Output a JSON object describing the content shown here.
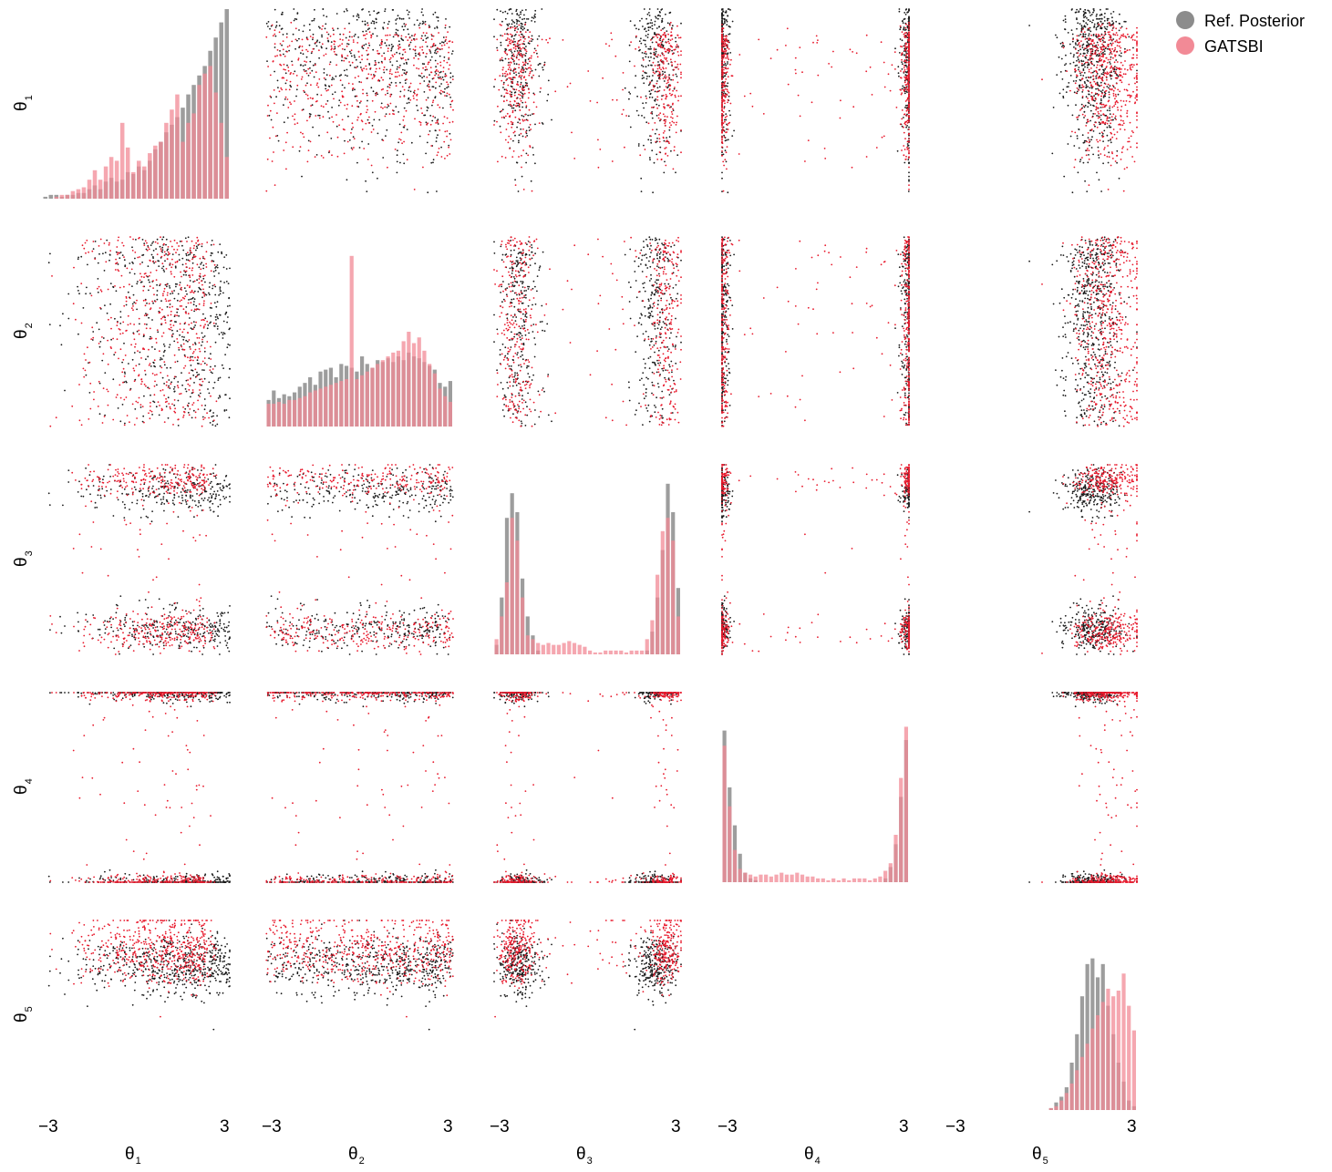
{
  "chart_data": {
    "type": "scatter",
    "subtype": "pairplot-corner",
    "params": [
      "θ1",
      "θ2",
      "θ3",
      "θ4",
      "θ5"
    ],
    "axis_symbol": "θ",
    "axis_subscripts": [
      "1",
      "2",
      "3",
      "4",
      "5"
    ],
    "range": [
      -3,
      3
    ],
    "tick_labels": [
      "−3",
      "3"
    ],
    "grid": false,
    "legend": {
      "placement": "top-right",
      "entries": [
        {
          "name": "Ref. Posterior",
          "color": "#8c8c8c"
        },
        {
          "name": "GATSBI",
          "color": "#f28a96"
        }
      ]
    },
    "colors": {
      "ref_hist": "#8c8c8c",
      "gatsbi_hist": "#f28a96",
      "ref_points": "#1a1a1a",
      "gatsbi_points": "#e8192c"
    },
    "diagonal_histograms": [
      {
        "param": "θ1",
        "bins": 34,
        "ref": [
          0.01,
          0.02,
          0.02,
          0.01,
          0.02,
          0.02,
          0.03,
          0.03,
          0.05,
          0.07,
          0.05,
          0.09,
          0.11,
          0.09,
          0.1,
          0.14,
          0.13,
          0.17,
          0.15,
          0.2,
          0.26,
          0.3,
          0.35,
          0.39,
          0.43,
          0.48,
          0.55,
          0.6,
          0.65,
          0.7,
          0.78,
          0.85,
          0.93,
          1.0
        ],
        "gatsbi": [
          0.0,
          0.0,
          0.01,
          0.02,
          0.02,
          0.04,
          0.05,
          0.06,
          0.1,
          0.15,
          0.1,
          0.17,
          0.22,
          0.2,
          0.4,
          0.27,
          0.14,
          0.2,
          0.17,
          0.24,
          0.28,
          0.3,
          0.4,
          0.47,
          0.55,
          0.3,
          0.4,
          0.45,
          0.6,
          0.66,
          0.7,
          0.56,
          0.4,
          0.22
        ]
      },
      {
        "param": "θ2",
        "bins": 36,
        "ref": [
          0.14,
          0.19,
          0.15,
          0.17,
          0.16,
          0.18,
          0.21,
          0.23,
          0.26,
          0.22,
          0.29,
          0.3,
          0.31,
          0.26,
          0.33,
          0.32,
          0.31,
          0.29,
          0.37,
          0.33,
          0.31,
          0.35,
          0.34,
          0.36,
          0.34,
          0.37,
          0.35,
          0.39,
          0.37,
          0.36,
          0.34,
          0.32,
          0.3,
          0.23,
          0.21,
          0.24
        ],
        "gatsbi": [
          0.12,
          0.12,
          0.13,
          0.12,
          0.14,
          0.14,
          0.15,
          0.16,
          0.18,
          0.19,
          0.2,
          0.21,
          0.22,
          0.23,
          0.24,
          0.25,
          0.9,
          0.25,
          0.27,
          0.29,
          0.31,
          0.33,
          0.35,
          0.37,
          0.39,
          0.4,
          0.45,
          0.5,
          0.44,
          0.47,
          0.4,
          0.33,
          0.28,
          0.2,
          0.16,
          0.13
        ]
      },
      {
        "param": "θ3",
        "bins": 36,
        "ref": [
          0.05,
          0.3,
          0.72,
          0.85,
          0.75,
          0.4,
          0.2,
          0.1,
          0.02,
          0.0,
          0.0,
          0.0,
          0.0,
          0.0,
          0.0,
          0.0,
          0.0,
          0.0,
          0.0,
          0.0,
          0.0,
          0.0,
          0.0,
          0.0,
          0.0,
          0.0,
          0.0,
          0.0,
          0.0,
          0.02,
          0.12,
          0.3,
          0.55,
          0.9,
          0.75,
          0.35
        ],
        "gatsbi": [
          0.08,
          0.2,
          0.38,
          0.72,
          0.6,
          0.3,
          0.1,
          0.08,
          0.06,
          0.05,
          0.06,
          0.05,
          0.05,
          0.06,
          0.07,
          0.06,
          0.05,
          0.04,
          0.02,
          0.01,
          0.01,
          0.02,
          0.02,
          0.02,
          0.02,
          0.01,
          0.02,
          0.02,
          0.02,
          0.08,
          0.18,
          0.42,
          0.65,
          0.72,
          0.6,
          0.2
        ]
      },
      {
        "param": "θ4",
        "bins": 36,
        "ref": [
          0.8,
          0.5,
          0.3,
          0.15,
          0.05,
          0.02,
          0.01,
          0.0,
          0.0,
          0.0,
          0.0,
          0.0,
          0.0,
          0.0,
          0.0,
          0.0,
          0.0,
          0.0,
          0.0,
          0.0,
          0.0,
          0.0,
          0.0,
          0.0,
          0.0,
          0.0,
          0.0,
          0.0,
          0.0,
          0.0,
          0.0,
          0.02,
          0.08,
          0.2,
          0.45,
          0.75
        ],
        "gatsbi": [
          0.72,
          0.4,
          0.17,
          0.07,
          0.05,
          0.04,
          0.03,
          0.04,
          0.04,
          0.03,
          0.04,
          0.05,
          0.04,
          0.04,
          0.05,
          0.04,
          0.03,
          0.03,
          0.02,
          0.02,
          0.01,
          0.02,
          0.01,
          0.02,
          0.01,
          0.02,
          0.02,
          0.02,
          0.01,
          0.02,
          0.03,
          0.06,
          0.1,
          0.25,
          0.55,
          0.82
        ]
      },
      {
        "param": "θ5",
        "bins": 36,
        "ref": [
          0.0,
          0.0,
          0.0,
          0.0,
          0.0,
          0.0,
          0.0,
          0.0,
          0.0,
          0.0,
          0.0,
          0.0,
          0.0,
          0.0,
          0.0,
          0.0,
          0.0,
          0.0,
          0.0,
          0.01,
          0.04,
          0.07,
          0.12,
          0.25,
          0.4,
          0.6,
          0.77,
          0.8,
          0.7,
          0.77,
          0.55,
          0.4,
          0.25,
          0.15,
          0.05,
          0.02
        ],
        "gatsbi": [
          0.0,
          0.0,
          0.0,
          0.0,
          0.0,
          0.0,
          0.0,
          0.0,
          0.0,
          0.0,
          0.0,
          0.0,
          0.0,
          0.0,
          0.0,
          0.0,
          0.0,
          0.0,
          0.0,
          0.01,
          0.02,
          0.05,
          0.09,
          0.14,
          0.21,
          0.28,
          0.35,
          0.43,
          0.5,
          0.57,
          0.64,
          0.6,
          0.63,
          0.72,
          0.55,
          0.42
        ]
      }
    ],
    "marginals": {
      "note_units": "parameter units within range [-3,3]",
      "ref": [
        {
          "type": "skew_high",
          "mode": 3.0
        },
        {
          "type": "uniform_ramp",
          "low": -3.0,
          "high": 3.0
        },
        {
          "type": "bimodal",
          "modes": [
            -2.2,
            2.2
          ],
          "sd": 0.35
        },
        {
          "type": "bimodal",
          "modes": [
            -3.0,
            3.0
          ],
          "sd": 0.15
        },
        {
          "type": "normal",
          "mean": 1.6,
          "sd": 0.5
        }
      ],
      "gatsbi": [
        {
          "type": "skew_high",
          "mode": 2.3
        },
        {
          "type": "uniform_ramp",
          "low": -3.0,
          "high": 3.0
        },
        {
          "type": "bimodal_spread",
          "modes": [
            -2.3,
            2.5
          ],
          "sd": 0.3
        },
        {
          "type": "bimodal_spread",
          "modes": [
            -3.0,
            3.0
          ],
          "sd": 0.12
        },
        {
          "type": "normal",
          "mean": 2.1,
          "sd": 0.6
        }
      ]
    }
  }
}
